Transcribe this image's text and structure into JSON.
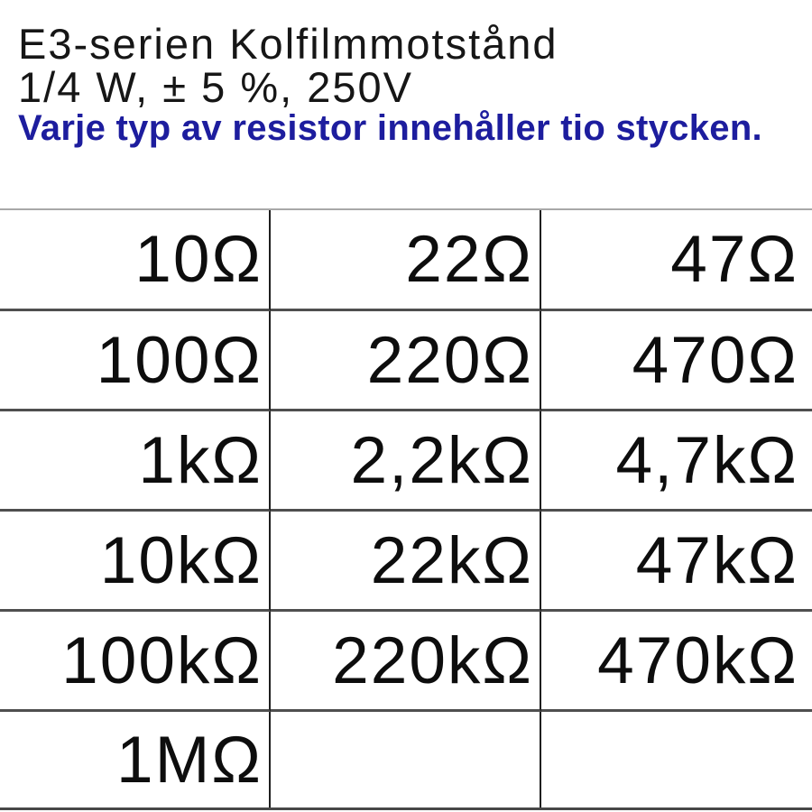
{
  "header": {
    "title": "E3-serien Kolfilmmotstånd",
    "subtitle": "1/4 W, ± 5 %, 250V",
    "note": "Varje typ av resistor innehåller tio stycken."
  },
  "table": {
    "unit": "Ω",
    "rows": [
      [
        "10Ω",
        "22Ω",
        "47Ω"
      ],
      [
        "100Ω",
        "220Ω",
        "470Ω"
      ],
      [
        "1kΩ",
        "2,2kΩ",
        "4,7kΩ"
      ],
      [
        "10kΩ",
        "22kΩ",
        "47kΩ"
      ],
      [
        "100kΩ",
        "220kΩ",
        "470kΩ"
      ],
      [
        "1MΩ",
        "",
        ""
      ]
    ]
  },
  "colors": {
    "note_blue": "#1d1d9e",
    "text_black": "#161616",
    "grid_line_dark": "#4f4f4f",
    "grid_line_light": "#a8a8a8",
    "grid_line_vertical": "#1f1f1f"
  }
}
